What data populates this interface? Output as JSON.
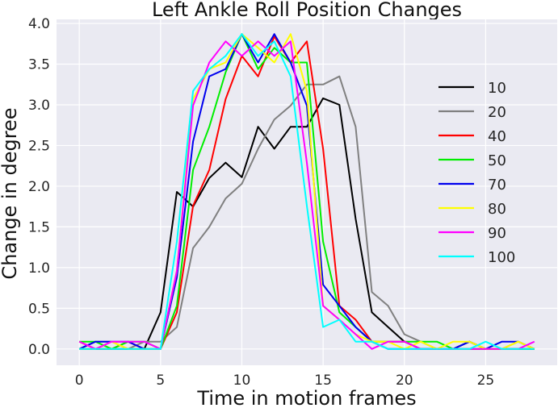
{
  "chart_data": {
    "type": "line",
    "title": "Left Ankle Roll Position Changes",
    "xlabel": "Time in motion frames",
    "ylabel": "Change in degree",
    "xlim": [
      -1.4,
      29.4
    ],
    "ylim": [
      -0.2,
      4.05
    ],
    "xticks": [
      0,
      5,
      10,
      15,
      20,
      25
    ],
    "yticks": [
      0.0,
      0.5,
      1.0,
      1.5,
      2.0,
      2.5,
      3.0,
      3.5,
      4.0
    ],
    "ytick_labels": [
      "0.0",
      "0.5",
      "1.0",
      "1.5",
      "2.0",
      "2.5",
      "3.0",
      "3.5",
      "4.0"
    ],
    "grid": true,
    "background": "#eaeaf2",
    "legend_position": "right",
    "x": [
      0,
      1,
      2,
      3,
      4,
      5,
      6,
      7,
      8,
      9,
      10,
      11,
      12,
      13,
      14,
      15,
      16,
      17,
      18,
      19,
      20,
      21,
      22,
      23,
      24,
      25,
      26,
      27,
      28
    ],
    "series": [
      {
        "name": "10",
        "color": "#000000",
        "values": [
          0.0,
          0.0,
          0.0,
          0.0,
          0.0,
          0.45,
          1.93,
          1.75,
          2.1,
          2.29,
          2.11,
          2.73,
          2.46,
          2.73,
          2.73,
          3.08,
          3.0,
          1.6,
          0.45,
          0.27,
          0.09,
          0.0,
          0.0,
          0.0,
          0.09,
          0.0,
          0.0,
          0.0,
          0.0
        ]
      },
      {
        "name": "20",
        "color": "#808080",
        "values": [
          0.0,
          0.09,
          0.09,
          0.0,
          0.09,
          0.09,
          0.27,
          1.24,
          1.5,
          1.85,
          2.03,
          2.46,
          2.82,
          2.99,
          3.25,
          3.25,
          3.35,
          2.73,
          0.7,
          0.53,
          0.18,
          0.09,
          0.0,
          0.0,
          0.0,
          0.0,
          0.0,
          0.09,
          0.0
        ]
      },
      {
        "name": "40",
        "color": "#ff0000",
        "values": [
          0.09,
          0.0,
          0.0,
          0.09,
          0.0,
          0.0,
          0.45,
          1.76,
          2.2,
          3.07,
          3.6,
          3.35,
          3.84,
          3.52,
          3.78,
          2.46,
          0.53,
          0.36,
          0.09,
          0.09,
          0.09,
          0.0,
          0.0,
          0.0,
          0.0,
          0.0,
          0.0,
          0.0,
          0.0
        ]
      },
      {
        "name": "50",
        "color": "#00ee00",
        "values": [
          0.09,
          0.09,
          0.0,
          0.09,
          0.09,
          0.0,
          0.53,
          2.2,
          2.73,
          3.4,
          3.87,
          3.44,
          3.7,
          3.52,
          3.52,
          1.32,
          0.45,
          0.27,
          0.09,
          0.09,
          0.09,
          0.09,
          0.09,
          0.0,
          0.0,
          0.0,
          0.0,
          0.0,
          0.0
        ]
      },
      {
        "name": "70",
        "color": "#0000ee",
        "values": [
          0.0,
          0.09,
          0.09,
          0.09,
          0.0,
          0.0,
          0.88,
          2.55,
          3.35,
          3.44,
          3.87,
          3.52,
          3.87,
          3.52,
          2.99,
          0.79,
          0.53,
          0.27,
          0.09,
          0.0,
          0.0,
          0.0,
          0.0,
          0.0,
          0.09,
          0.0,
          0.09,
          0.09,
          0.0
        ]
      },
      {
        "name": "80",
        "color": "#ffff00",
        "values": [
          0.0,
          0.0,
          0.09,
          0.0,
          0.0,
          0.0,
          0.96,
          3.07,
          3.44,
          3.52,
          3.87,
          3.7,
          3.52,
          3.87,
          3.17,
          0.53,
          0.36,
          0.18,
          0.09,
          0.09,
          0.0,
          0.09,
          0.0,
          0.09,
          0.09,
          0.0,
          0.0,
          0.09,
          0.0
        ]
      },
      {
        "name": "90",
        "color": "#ff00ff",
        "values": [
          0.09,
          0.0,
          0.09,
          0.09,
          0.09,
          0.0,
          0.96,
          2.99,
          3.52,
          3.78,
          3.6,
          3.78,
          3.6,
          3.78,
          2.29,
          0.53,
          0.36,
          0.18,
          0.0,
          0.09,
          0.09,
          0.0,
          0.0,
          0.0,
          0.0,
          0.0,
          0.0,
          0.0,
          0.09
        ]
      },
      {
        "name": "100",
        "color": "#00ffff",
        "values": [
          0.0,
          0.0,
          0.0,
          0.0,
          0.0,
          0.0,
          1.32,
          3.17,
          3.44,
          3.6,
          3.87,
          3.6,
          3.78,
          3.35,
          1.76,
          0.27,
          0.36,
          0.09,
          0.09,
          0.0,
          0.0,
          0.0,
          0.0,
          0.0,
          0.0,
          0.09,
          0.0,
          0.0,
          0.0
        ]
      }
    ]
  }
}
